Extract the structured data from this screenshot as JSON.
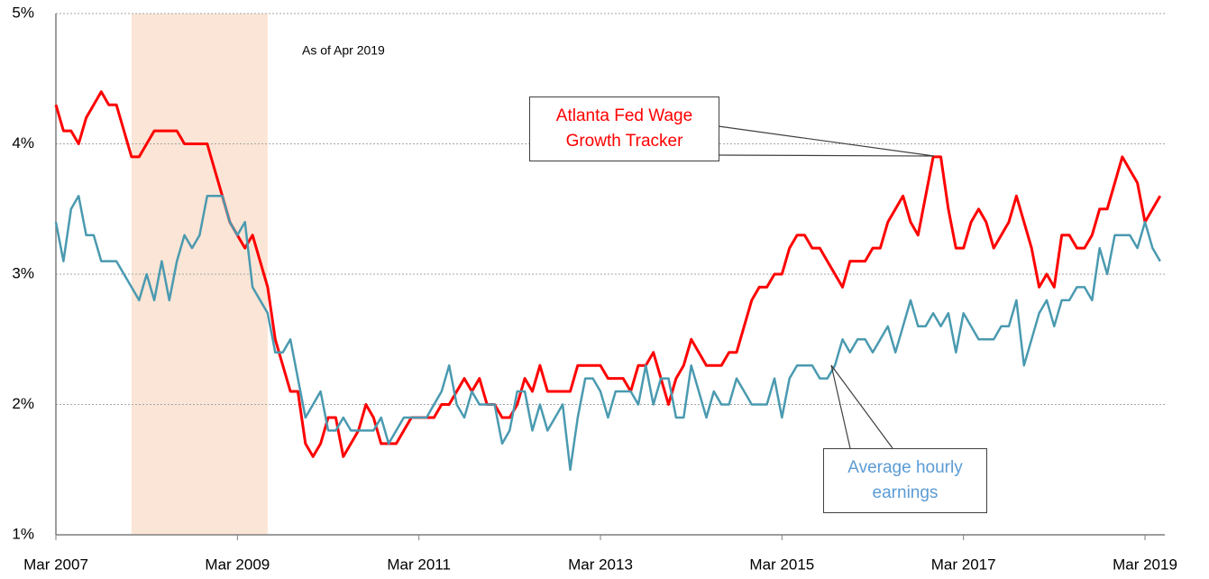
{
  "chart_data": {
    "type": "line",
    "annotation": "As of Apr 2019",
    "categories": [
      "Mar 2007",
      null,
      null,
      null,
      null,
      null,
      null,
      null,
      null,
      null,
      null,
      null,
      null,
      null,
      null,
      null,
      null,
      null,
      null,
      null,
      null,
      null,
      null,
      null,
      "Mar 2009",
      null,
      null,
      null,
      null,
      null,
      null,
      null,
      null,
      null,
      null,
      null,
      null,
      null,
      null,
      null,
      null,
      null,
      null,
      null,
      null,
      null,
      null,
      null,
      "Mar 2011",
      null,
      null,
      null,
      null,
      null,
      null,
      null,
      null,
      null,
      null,
      null,
      null,
      null,
      null,
      null,
      null,
      null,
      null,
      null,
      null,
      null,
      null,
      null,
      "Mar 2013",
      null,
      null,
      null,
      null,
      null,
      null,
      null,
      null,
      null,
      null,
      null,
      null,
      null,
      null,
      null,
      null,
      null,
      null,
      null,
      null,
      null,
      null,
      null,
      "Mar 2015",
      null,
      null,
      null,
      null,
      null,
      null,
      null,
      null,
      null,
      null,
      null,
      null,
      null,
      null,
      null,
      null,
      null,
      null,
      null,
      null,
      null,
      null,
      null,
      "Mar 2017",
      null,
      null,
      null,
      null,
      null,
      null,
      null,
      null,
      null,
      null,
      null,
      null,
      null,
      null,
      null,
      null,
      null,
      null,
      null,
      null,
      null,
      null,
      null,
      "Mar 2019",
      null,
      null
    ],
    "series": [
      {
        "name": "Atlanta Fed Wage Growth Tracker",
        "color": "#ff0000",
        "values": [
          4.3,
          4.1,
          4.1,
          4.0,
          4.2,
          4.3,
          4.4,
          4.3,
          4.3,
          4.1,
          3.9,
          3.9,
          4.0,
          4.1,
          4.1,
          4.1,
          4.1,
          4.0,
          4.0,
          4.0,
          4.0,
          3.8,
          3.6,
          3.4,
          3.3,
          3.2,
          3.3,
          3.1,
          2.9,
          2.5,
          2.3,
          2.1,
          2.1,
          1.7,
          1.6,
          1.7,
          1.9,
          1.9,
          1.6,
          1.7,
          1.8,
          2.0,
          1.9,
          1.7,
          1.7,
          1.7,
          1.8,
          1.9,
          1.9,
          1.9,
          1.9,
          2.0,
          2.0,
          2.1,
          2.2,
          2.1,
          2.2,
          2.0,
          2.0,
          1.9,
          1.9,
          2.0,
          2.2,
          2.1,
          2.3,
          2.1,
          2.1,
          2.1,
          2.1,
          2.3,
          2.3,
          2.3,
          2.3,
          2.2,
          2.2,
          2.2,
          2.1,
          2.3,
          2.3,
          2.4,
          2.2,
          2.0,
          2.2,
          2.3,
          2.5,
          2.4,
          2.3,
          2.3,
          2.3,
          2.4,
          2.4,
          2.6,
          2.8,
          2.9,
          2.9,
          3.0,
          3.0,
          3.2,
          3.3,
          3.3,
          3.2,
          3.2,
          3.1,
          3.0,
          2.9,
          3.1,
          3.1,
          3.1,
          3.2,
          3.2,
          3.4,
          3.5,
          3.6,
          3.4,
          3.3,
          3.6,
          3.9,
          3.9,
          3.5,
          3.2,
          3.2,
          3.4,
          3.5,
          3.4,
          3.2,
          3.3,
          3.4,
          3.6,
          3.4,
          3.2,
          2.9,
          3.0,
          2.9,
          3.3,
          3.3,
          3.2,
          3.2,
          3.3,
          3.5,
          3.5,
          3.7,
          3.9,
          3.8,
          3.7,
          3.4,
          3.5,
          3.6
        ]
      },
      {
        "name": "Average hourly earnings",
        "color": "#4a9ab0",
        "values": [
          3.4,
          3.1,
          3.5,
          3.6,
          3.3,
          3.3,
          3.1,
          3.1,
          3.1,
          3.0,
          2.9,
          2.8,
          3.0,
          2.8,
          3.1,
          2.8,
          3.1,
          3.3,
          3.2,
          3.3,
          3.6,
          3.6,
          3.6,
          3.4,
          3.3,
          3.4,
          2.9,
          2.8,
          2.7,
          2.4,
          2.4,
          2.5,
          2.2,
          1.9,
          2.0,
          2.1,
          1.8,
          1.8,
          1.9,
          1.8,
          1.8,
          1.8,
          1.8,
          1.9,
          1.7,
          1.8,
          1.9,
          1.9,
          1.9,
          1.9,
          2.0,
          2.1,
          2.3,
          2.0,
          1.9,
          2.1,
          2.0,
          2.0,
          2.0,
          1.7,
          1.8,
          2.1,
          2.1,
          1.8,
          2.0,
          1.8,
          1.9,
          2.0,
          1.5,
          1.9,
          2.2,
          2.2,
          2.1,
          1.9,
          2.1,
          2.1,
          2.1,
          2.0,
          2.3,
          2.0,
          2.2,
          2.2,
          1.9,
          1.9,
          2.3,
          2.1,
          1.9,
          2.1,
          2.0,
          2.0,
          2.2,
          2.1,
          2.0,
          2.0,
          2.0,
          2.2,
          1.9,
          2.2,
          2.3,
          2.3,
          2.3,
          2.2,
          2.2,
          2.3,
          2.5,
          2.4,
          2.5,
          2.5,
          2.4,
          2.5,
          2.6,
          2.4,
          2.6,
          2.8,
          2.6,
          2.6,
          2.7,
          2.6,
          2.7,
          2.4,
          2.7,
          2.6,
          2.5,
          2.5,
          2.5,
          2.6,
          2.6,
          2.8,
          2.3,
          2.5,
          2.7,
          2.8,
          2.6,
          2.8,
          2.8,
          2.9,
          2.9,
          2.8,
          3.2,
          3.0,
          3.3,
          3.3,
          3.3,
          3.2,
          3.4,
          3.2,
          3.1
        ]
      }
    ],
    "shaded_span": [
      10,
      28
    ],
    "shade_color": "#fbe5d6",
    "ylim": [
      1,
      5
    ],
    "yticks": [
      {
        "value": 1,
        "label": "1%"
      },
      {
        "value": 2,
        "label": "2%"
      },
      {
        "value": 3,
        "label": "3%"
      },
      {
        "value": 4,
        "label": "4%"
      },
      {
        "value": 5,
        "label": "5%"
      }
    ],
    "grid": true
  }
}
